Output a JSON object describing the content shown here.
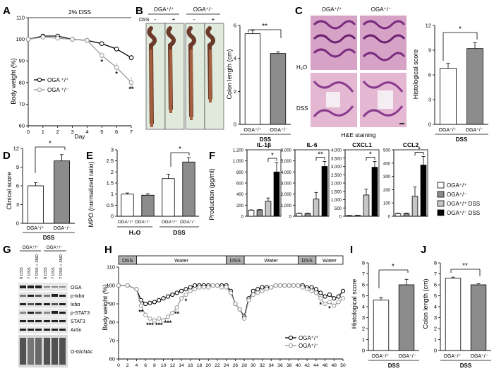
{
  "panels": {
    "A": {
      "letter": "A",
      "banner": "2% DSS",
      "ylabel": "Body weight (%)",
      "xlabel": "Day",
      "legend": [
        "OGA ⁺/⁺",
        "OGA ⁺/⁻"
      ]
    },
    "B": {
      "letter": "B",
      "top_left": "OGA⁺/⁺",
      "top_right": "OGA⁺/⁻",
      "dss_label": "DSS",
      "marks": [
        "-",
        "+",
        "-",
        "+"
      ],
      "ylabel": "Colon length (cm)",
      "sig": "**",
      "xlabels": [
        "OGA⁺/⁺",
        "OGA⁺/⁻"
      ],
      "group": "DSS"
    },
    "C": {
      "letter": "C",
      "col1": "OGA⁺/⁺",
      "col2": "OGA⁺/⁻",
      "row1": "H₂O",
      "row2": "DSS",
      "caption": "H&E staining",
      "ylabel": "Histological score",
      "sig": "*",
      "xlabels": [
        "OGA⁺/⁺",
        "OGA⁺/⁻"
      ],
      "group": "DSS"
    },
    "D": {
      "letter": "D",
      "ylabel": "Clinical score",
      "sig": "*",
      "xlabels": [
        "OGA⁺/⁺",
        "OGA⁺/⁻"
      ],
      "group": "DSS"
    },
    "E": {
      "letter": "E",
      "ylabel": "MPO (normalized ratio)",
      "sig": "*",
      "xlabels": [
        "OGA⁺/⁺",
        "OGA⁺/⁻",
        "OGA⁺/⁺",
        "OGA⁺/⁻"
      ],
      "groups": [
        "H₂O",
        "DSS"
      ]
    },
    "F": {
      "letter": "F",
      "ylabel": "Production (pg/ml)",
      "legend": [
        "OGA⁺/⁺",
        "OGA⁺/⁻",
        "OGA⁺/⁺ DSS",
        "OGA⁺/⁻  DSS"
      ]
    },
    "G": {
      "letter": "G",
      "col_groups": [
        "OGA⁺/⁺",
        "OGA⁺/⁻"
      ],
      "lanes": [
        "0 DSS",
        "7 DSS",
        "7 DSS + 3ND",
        "0 DSS",
        "7 DSS",
        "7 DSS + 3ND"
      ],
      "blots": [
        "OGA",
        "p-Iκbα",
        "Iκbα",
        "p-STAT3",
        "STAT3",
        "Actin",
        "O-GlcNAc"
      ]
    },
    "H": {
      "letter": "H",
      "ylabel": "Body weight (%)",
      "phases": [
        "DSS",
        "Water",
        "DSS",
        "Water",
        "DSS",
        "Water"
      ],
      "legend": [
        "OGA⁺/⁺",
        "OGA⁺/⁻"
      ]
    },
    "I": {
      "letter": "I",
      "ylabel": "Histological score",
      "sig": "*",
      "xlabels": [
        "OGA⁺/⁺",
        "OGA⁺/⁻"
      ],
      "group": "DSS"
    },
    "J": {
      "letter": "J",
      "ylabel": "Colon length (cm)",
      "sig": "**",
      "xlabels": [
        "OGA⁺/⁺",
        "OGA⁺/⁻"
      ],
      "group": "DSS"
    }
  },
  "chart_data": [
    {
      "id": "A",
      "type": "line",
      "x": [
        0,
        1,
        2,
        3,
        4,
        5,
        6,
        7
      ],
      "xlim": [
        0,
        7
      ],
      "ylim": [
        60,
        110
      ],
      "yticks": [
        60,
        70,
        80,
        90,
        100,
        110
      ],
      "xticks": [
        0,
        1,
        2,
        3,
        4,
        5,
        6,
        7
      ],
      "series": [
        {
          "name": "OGA ⁺/⁺",
          "values": [
            100,
            101.5,
            101.5,
            100,
            99.5,
            98,
            95.5,
            91.5
          ],
          "errors": [
            0.5,
            1,
            1,
            0.8,
            0.8,
            1,
            1,
            1.2
          ],
          "marker": "open"
        },
        {
          "name": "OGA ⁺/⁻",
          "values": [
            100,
            101,
            100.5,
            100,
            99.5,
            92.5,
            87,
            80
          ],
          "errors": [
            0.5,
            1,
            1,
            0.8,
            1,
            1.5,
            2,
            2.5
          ],
          "marker": "gray"
        }
      ],
      "annotations": [
        {
          "x": 5,
          "text": "*"
        },
        {
          "x": 6,
          "text": "*"
        },
        {
          "x": 7,
          "text": "**"
        }
      ]
    },
    {
      "id": "B",
      "type": "bar",
      "categories": [
        "OGA⁺/⁺",
        "OGA⁺/⁻"
      ],
      "values": [
        5.5,
        4.3
      ],
      "errors": [
        0.2,
        0.1
      ],
      "ylim": [
        0,
        6
      ],
      "yticks": [
        0,
        2,
        4,
        6
      ],
      "colors": [
        "#ffffff",
        "#8c8c8c"
      ]
    },
    {
      "id": "C",
      "type": "bar",
      "categories": [
        "OGA⁺/⁺",
        "OGA⁺/⁻"
      ],
      "values": [
        6.8,
        9.2
      ],
      "errors": [
        0.6,
        0.7
      ],
      "ylim": [
        0,
        12
      ],
      "yticks": [
        0,
        3,
        6,
        9,
        12
      ],
      "colors": [
        "#ffffff",
        "#8c8c8c"
      ]
    },
    {
      "id": "D",
      "type": "bar",
      "categories": [
        "OGA⁺/⁺",
        "OGA⁺/⁻"
      ],
      "values": [
        6,
        10
      ],
      "errors": [
        0.5,
        1
      ],
      "ylim": [
        0,
        12
      ],
      "yticks": [
        0,
        3,
        6,
        9,
        12
      ],
      "colors": [
        "#ffffff",
        "#8c8c8c"
      ]
    },
    {
      "id": "E",
      "type": "bar",
      "categories": [
        "OGA⁺/⁺",
        "OGA⁺/⁻",
        "OGA⁺/⁺",
        "OGA⁺/⁻"
      ],
      "values": [
        1.0,
        0.95,
        1.7,
        2.45
      ],
      "errors": [
        0.05,
        0.07,
        0.2,
        0.2
      ],
      "ylim": [
        0,
        3
      ],
      "yticks": [
        0,
        0.5,
        1,
        1.5,
        2,
        2.5,
        3
      ],
      "colors": [
        "#ffffff",
        "#8c8c8c",
        "#ffffff",
        "#8c8c8c"
      ]
    },
    {
      "id": "F1",
      "type": "bar",
      "title": "IL-1β",
      "values": [
        110,
        115,
        270,
        800
      ],
      "errors": [
        5,
        5,
        60,
        170
      ],
      "ylim": [
        0,
        1200
      ],
      "yticks": [
        0,
        200,
        400,
        600,
        800,
        1000,
        1200
      ],
      "ytick_labels": [
        "0",
        "200",
        "400",
        "600",
        "800",
        "1,000",
        "1,200"
      ],
      "sig": "*"
    },
    {
      "id": "F2",
      "type": "bar",
      "title": "IL-6",
      "values": [
        250,
        250,
        1550,
        4500
      ],
      "errors": [
        30,
        30,
        600,
        450
      ],
      "ylim": [
        0,
        6000
      ],
      "yticks": [
        0,
        1000,
        2000,
        3000,
        4000,
        5000,
        6000
      ],
      "ytick_labels": [
        "0",
        "1,000",
        "2,000",
        "3,000",
        "4,000",
        "5,000",
        "6,000"
      ],
      "sig": "**"
    },
    {
      "id": "F3",
      "type": "bar",
      "title": "CXCL1",
      "values": [
        40,
        50,
        1280,
        2950
      ],
      "errors": [
        10,
        10,
        350,
        350
      ],
      "ylim": [
        0,
        4000
      ],
      "yticks": [
        0,
        500,
        1000,
        1500,
        2000,
        2500,
        3000,
        3500,
        4000
      ],
      "ytick_labels": [
        "0",
        "500",
        "1,000",
        "1,500",
        "2,000",
        "2,500",
        "3,000",
        "3,500",
        "4,000"
      ],
      "sig": "*"
    },
    {
      "id": "F4",
      "type": "bar",
      "title": "CCL2",
      "values": [
        20,
        20,
        150,
        385
      ],
      "errors": [
        3,
        3,
        70,
        65
      ],
      "ylim": [
        0,
        500
      ],
      "yticks": [
        0,
        100,
        200,
        300,
        400,
        500
      ],
      "ytick_labels": [
        "0",
        "100",
        "200",
        "300",
        "400",
        "500"
      ],
      "sig": "*"
    },
    {
      "id": "H",
      "type": "line",
      "xlim": [
        0,
        50
      ],
      "ylim": [
        60,
        110
      ],
      "yticks": [
        60,
        70,
        80,
        90,
        100,
        110
      ],
      "xticks": [
        0,
        2,
        4,
        6,
        8,
        10,
        12,
        14,
        16,
        18,
        20,
        22,
        24,
        26,
        28,
        30,
        32,
        34,
        36,
        38,
        40,
        42,
        44,
        46,
        48,
        50
      ],
      "x": [
        0,
        2,
        4,
        5,
        6,
        7,
        8,
        9,
        10,
        11,
        12,
        13,
        14,
        15,
        16,
        17,
        18,
        19,
        20,
        21,
        22,
        23,
        24,
        25,
        26,
        27,
        28,
        29,
        30,
        31,
        32,
        33,
        34,
        35,
        36,
        37,
        38,
        39,
        40,
        41,
        42,
        43,
        44,
        45,
        46,
        47,
        48,
        49,
        50
      ],
      "series": [
        {
          "name": "OGA⁺/⁺",
          "values": [
            100,
            100,
            98,
            92,
            90,
            90.5,
            91,
            92,
            93,
            94,
            95,
            96,
            97,
            98,
            99,
            100,
            100,
            100,
            100,
            100,
            100,
            100,
            100,
            97,
            90,
            87,
            83,
            93,
            97,
            98,
            99,
            99,
            99,
            100,
            100,
            100,
            100,
            100,
            100,
            100,
            99,
            99,
            98,
            96,
            94,
            95,
            93,
            94,
            97
          ],
          "marker": "open"
        },
        {
          "name": "OGA⁺/⁻",
          "values": [
            100,
            100,
            98,
            89,
            84,
            82,
            81,
            82,
            81,
            83,
            85,
            88,
            93,
            95,
            97,
            98,
            99,
            99,
            99,
            100,
            100,
            99,
            99,
            96,
            90,
            87,
            82,
            92,
            95,
            96,
            97,
            98,
            99,
            100,
            100,
            100,
            100,
            100,
            100,
            99,
            98,
            97,
            96,
            93,
            90,
            91,
            89,
            91,
            93
          ],
          "marker": "gray"
        }
      ],
      "annotations": [
        {
          "x": 5,
          "text": "**"
        },
        {
          "x": 7,
          "text": "***"
        },
        {
          "x": 9,
          "text": "***"
        },
        {
          "x": 11,
          "text": "***"
        },
        {
          "x": 13,
          "text": "**"
        },
        {
          "x": 15,
          "text": "*"
        },
        {
          "x": 45,
          "text": "*"
        },
        {
          "x": 47,
          "text": "*"
        }
      ]
    },
    {
      "id": "I",
      "type": "bar",
      "categories": [
        "OGA⁺/⁺",
        "OGA⁺/⁻"
      ],
      "values": [
        4.6,
        6
      ],
      "errors": [
        0.25,
        0.5
      ],
      "ylim": [
        0,
        8
      ],
      "yticks": [
        0,
        1,
        2,
        3,
        4,
        5,
        6,
        7,
        8
      ],
      "colors": [
        "#ffffff",
        "#8c8c8c"
      ]
    },
    {
      "id": "J",
      "type": "bar",
      "categories": [
        "OGA⁺/⁺",
        "OGA⁺/⁻"
      ],
      "values": [
        6.6,
        6.0
      ],
      "errors": [
        0.1,
        0.1
      ],
      "ylim": [
        0,
        8
      ],
      "yticks": [
        0,
        1,
        2,
        3,
        4,
        5,
        6,
        7,
        8
      ],
      "colors": [
        "#ffffff",
        "#8c8c8c"
      ]
    }
  ]
}
